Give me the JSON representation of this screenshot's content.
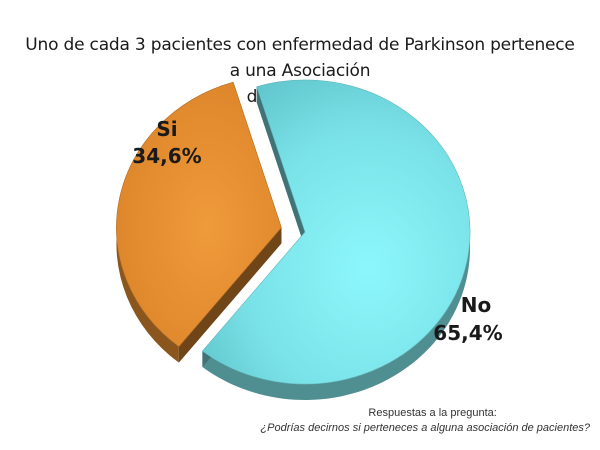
{
  "chart_data": {
    "type": "pie",
    "title_lines": [
      "Uno de cada 3 pacientes con enfermedad de Parkinson pertenece a una Asociación",
      "de pacientes"
    ],
    "slices": [
      {
        "name": "No",
        "value": 65.4,
        "label": "65,4%",
        "color": "#7fe6ec",
        "exploded": false
      },
      {
        "name": "Si",
        "value": 34.6,
        "label": "34,6%",
        "color": "#e08a2e",
        "exploded": true
      }
    ],
    "legend": "none"
  },
  "footnote": {
    "heading": "Respuestas a la pregunta:",
    "question": "¿Podrías decirnos si perteneces a alguna asociación de pacientes?"
  }
}
